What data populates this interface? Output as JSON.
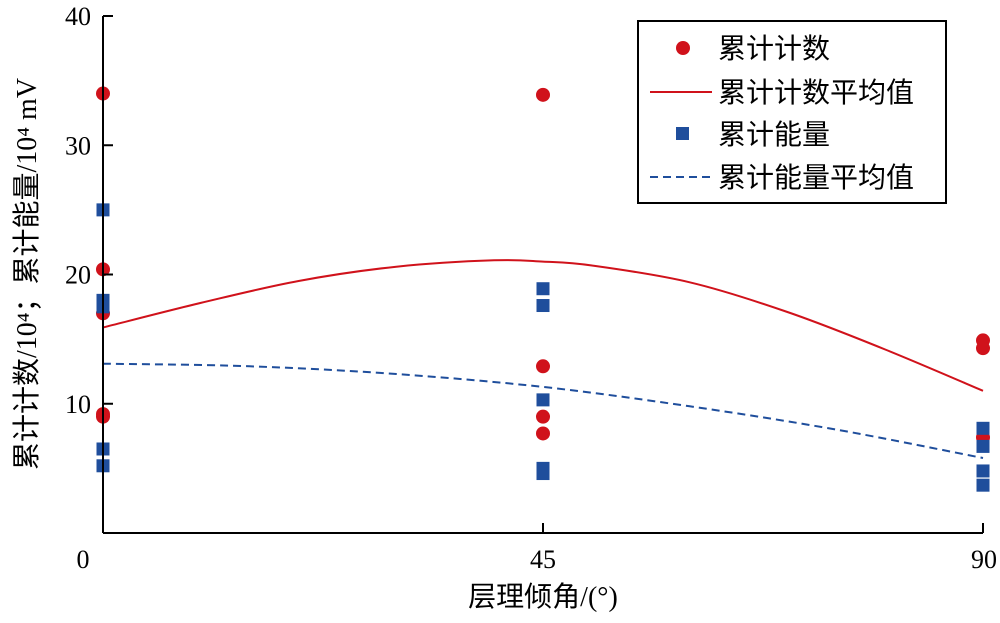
{
  "chart_data": {
    "type": "scatter",
    "xlabel": "层理倾角/(°)",
    "ylabel": "累计计数/10⁴；累计能量/10⁴ mV",
    "xlim": [
      0,
      90
    ],
    "ylim": [
      0,
      40
    ],
    "xticks": [
      "0",
      "45",
      "90"
    ],
    "yticks": [
      "10",
      "20",
      "30",
      "40"
    ],
    "legend_position": "top-right",
    "colors": {
      "count": "#d0121b",
      "energy": "#1f4e9c"
    },
    "series": [
      {
        "name": "累计计数",
        "kind": "scatter",
        "marker": "circle",
        "color": "#d0121b",
        "points": [
          [
            0,
            34.0
          ],
          [
            0,
            20.4
          ],
          [
            0,
            17.0
          ],
          [
            0,
            9.2
          ],
          [
            0,
            9.0
          ],
          [
            45,
            33.9
          ],
          [
            45,
            12.9
          ],
          [
            45,
            9.0
          ],
          [
            45,
            7.7
          ],
          [
            90,
            14.9
          ],
          [
            90,
            14.3
          ],
          [
            90,
            7.4
          ]
        ]
      },
      {
        "name": "累计计数平均值",
        "kind": "line",
        "style": "solid",
        "color": "#d0121b",
        "points": [
          [
            0,
            15.9
          ],
          [
            10,
            17.8
          ],
          [
            20,
            19.5
          ],
          [
            30,
            20.6
          ],
          [
            40,
            21.1
          ],
          [
            45,
            21.0
          ],
          [
            50,
            20.7
          ],
          [
            60,
            19.4
          ],
          [
            70,
            17.1
          ],
          [
            80,
            14.2
          ],
          [
            90,
            11.0
          ]
        ]
      },
      {
        "name": "累计能量",
        "kind": "scatter",
        "marker": "square",
        "color": "#1f4e9c",
        "points": [
          [
            0,
            25.0
          ],
          [
            0,
            18.0
          ],
          [
            0,
            17.5
          ],
          [
            0,
            6.5
          ],
          [
            0,
            5.2
          ],
          [
            45,
            18.9
          ],
          [
            45,
            17.6
          ],
          [
            45,
            10.3
          ],
          [
            45,
            5.0
          ],
          [
            45,
            4.6
          ],
          [
            90,
            8.1
          ],
          [
            90,
            6.7
          ],
          [
            90,
            4.8
          ],
          [
            90,
            3.7
          ]
        ]
      },
      {
        "name": "累计能量平均值",
        "kind": "line",
        "style": "dashed",
        "color": "#1f4e9c",
        "points": [
          [
            0,
            13.1
          ],
          [
            15,
            12.9
          ],
          [
            30,
            12.3
          ],
          [
            45,
            11.3
          ],
          [
            60,
            9.8
          ],
          [
            75,
            8.0
          ],
          [
            90,
            5.8
          ]
        ]
      }
    ]
  }
}
